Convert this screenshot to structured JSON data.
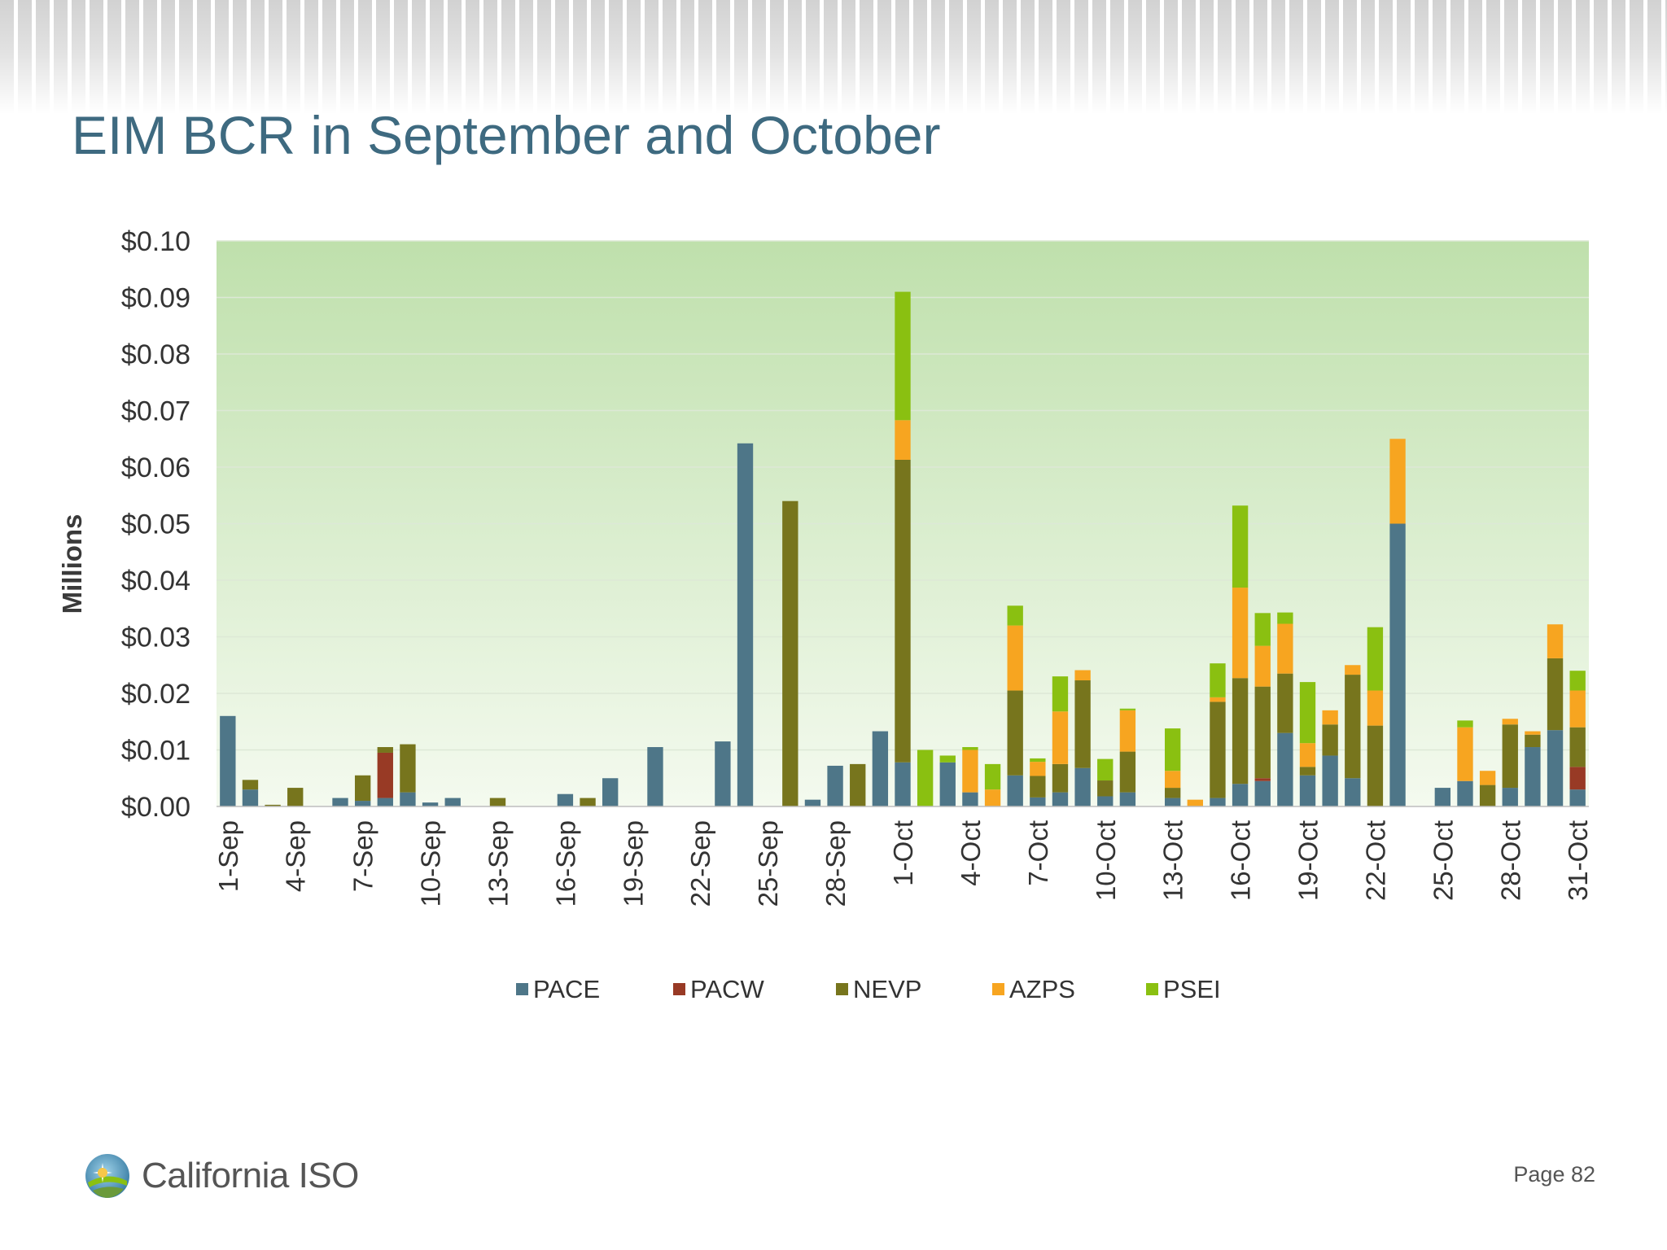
{
  "slide": {
    "title": "EIM BCR in September and October",
    "page_label": "Page 82",
    "logo_text": "California ISO"
  },
  "colors": {
    "title": "#3e6a80",
    "PACE": "#4e7688",
    "PACW": "#983a25",
    "NEVP": "#77751d",
    "AZPS": "#f7a520",
    "PSEI": "#8ac011",
    "plot_top": "#bfe0ac",
    "plot_bottom": "#f4faef"
  },
  "chart_data": {
    "type": "bar",
    "stacked": true,
    "title": "",
    "ylabel": "Millions",
    "xlabel": "",
    "ylim": [
      0,
      0.1
    ],
    "y_ticks": [
      "$0.00",
      "$0.01",
      "$0.02",
      "$0.03",
      "$0.04",
      "$0.05",
      "$0.06",
      "$0.07",
      "$0.08",
      "$0.09",
      "$0.10"
    ],
    "grid": true,
    "legend_position": "bottom",
    "categories": [
      "1-Sep",
      "2-Sep",
      "3-Sep",
      "4-Sep",
      "5-Sep",
      "6-Sep",
      "7-Sep",
      "8-Sep",
      "9-Sep",
      "10-Sep",
      "11-Sep",
      "12-Sep",
      "13-Sep",
      "14-Sep",
      "15-Sep",
      "16-Sep",
      "17-Sep",
      "18-Sep",
      "19-Sep",
      "20-Sep",
      "21-Sep",
      "22-Sep",
      "23-Sep",
      "24-Sep",
      "25-Sep",
      "26-Sep",
      "27-Sep",
      "28-Sep",
      "29-Sep",
      "30-Sep",
      "1-Oct",
      "2-Oct",
      "3-Oct",
      "4-Oct",
      "5-Oct",
      "6-Oct",
      "7-Oct",
      "8-Oct",
      "9-Oct",
      "10-Oct",
      "11-Oct",
      "12-Oct",
      "13-Oct",
      "14-Oct",
      "15-Oct",
      "16-Oct",
      "17-Oct",
      "18-Oct",
      "19-Oct",
      "20-Oct",
      "21-Oct",
      "22-Oct",
      "23-Oct",
      "24-Oct",
      "25-Oct",
      "26-Oct",
      "27-Oct",
      "28-Oct",
      "29-Oct",
      "30-Oct",
      "31-Oct"
    ],
    "tick_labels_shown": [
      "1-Sep",
      "4-Sep",
      "7-Sep",
      "10-Sep",
      "13-Sep",
      "16-Sep",
      "19-Sep",
      "22-Sep",
      "25-Sep",
      "28-Sep",
      "1-Oct",
      "4-Oct",
      "7-Oct",
      "10-Oct",
      "13-Oct",
      "16-Oct",
      "19-Oct",
      "22-Oct",
      "25-Oct",
      "28-Oct",
      "31-Oct"
    ],
    "series": [
      {
        "name": "PACE",
        "values": [
          0.016,
          0.003,
          0,
          0,
          0,
          0.0015,
          0.001,
          0.0015,
          0.0025,
          0.0007,
          0.0015,
          0,
          0,
          0,
          0,
          0.0022,
          0,
          0.005,
          0,
          0.0105,
          0,
          0,
          0.0115,
          0.0642,
          0,
          0,
          0.0012,
          0.0072,
          0,
          0.0133,
          0.0078,
          0,
          0.0078,
          0.0025,
          0,
          0.0055,
          0.0016,
          0.0025,
          0.0068,
          0.0018,
          0.0025,
          0,
          0.0015,
          0,
          0.0015,
          0.004,
          0.0045,
          0.013,
          0.0055,
          0.009,
          0.005,
          0,
          0.05,
          0,
          0.0033,
          0.0045,
          0,
          0.0033,
          0.0105,
          0.0135,
          0.003
        ]
      },
      {
        "name": "PACW",
        "values": [
          0,
          0,
          0,
          0,
          0,
          0,
          0,
          0.008,
          0,
          0,
          0,
          0,
          0,
          0,
          0,
          0,
          0,
          0,
          0,
          0,
          0,
          0,
          0,
          0,
          0,
          0,
          0,
          0,
          0,
          0,
          0,
          0,
          0,
          0,
          0,
          0,
          0,
          0,
          0,
          0,
          0,
          0,
          0,
          0,
          0,
          0,
          0.0005,
          0,
          0,
          0,
          0,
          0,
          0,
          0,
          0,
          0,
          0,
          0,
          0,
          0,
          0.004
        ]
      },
      {
        "name": "NEVP",
        "values": [
          0,
          0.0017,
          0.0003,
          0.0033,
          0,
          0,
          0.0045,
          0.001,
          0.0085,
          0,
          0,
          0,
          0.0015,
          0,
          0,
          0,
          0.0015,
          0,
          0,
          0,
          0,
          0,
          0,
          0,
          0,
          0.054,
          0,
          0,
          0.0075,
          0,
          0.0535,
          0,
          0,
          0,
          0,
          0.015,
          0.0038,
          0.005,
          0.0155,
          0.0028,
          0.0072,
          0,
          0.0018,
          0,
          0.017,
          0.0187,
          0.0162,
          0.0105,
          0.0015,
          0.0055,
          0.0183,
          0.0143,
          0,
          0,
          0,
          0,
          0.0038,
          0.0112,
          0.0022,
          0.0127,
          0.007
        ]
      },
      {
        "name": "AZPS",
        "values": [
          0,
          0,
          0,
          0,
          0,
          0,
          0,
          0,
          0,
          0,
          0,
          0,
          0,
          0,
          0,
          0,
          0,
          0,
          0,
          0,
          0,
          0,
          0,
          0,
          0,
          0,
          0,
          0,
          0,
          0,
          0.007,
          0,
          0,
          0.0075,
          0.003,
          0.0115,
          0.0025,
          0.0093,
          0.0018,
          0,
          0.0073,
          0,
          0.003,
          0.0012,
          0.0008,
          0.016,
          0.0072,
          0.0088,
          0.0042,
          0.0025,
          0.0017,
          0.0062,
          0.015,
          0,
          0,
          0.0095,
          0.0025,
          0.001,
          0.0006,
          0.006,
          0.0065
        ]
      },
      {
        "name": "PSEI",
        "values": [
          0,
          0,
          0,
          0,
          0,
          0,
          0,
          0,
          0,
          0,
          0,
          0,
          0,
          0,
          0,
          0,
          0,
          0,
          0,
          0,
          0,
          0,
          0,
          0,
          0,
          0,
          0,
          0,
          0,
          0,
          0.0227,
          0.01,
          0.0012,
          0.0005,
          0.0045,
          0.0035,
          0.0006,
          0.0062,
          0,
          0.0038,
          0.0003,
          0,
          0.0075,
          0,
          0.006,
          0.0145,
          0.0058,
          0.002,
          0.0108,
          0,
          0,
          0.0112,
          0,
          0,
          0,
          0.0012,
          0,
          0,
          0,
          0,
          0.0035
        ]
      }
    ]
  }
}
